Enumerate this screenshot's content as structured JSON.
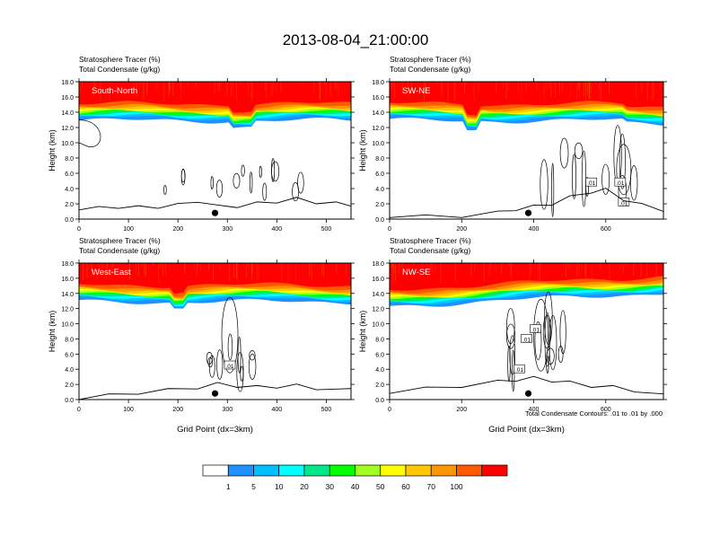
{
  "figure_title": "2013-08-04_21:00:00",
  "contour_note": "Total Condensate Contours: .01 to .01 by .000",
  "colorbar": {
    "levels": [
      "1",
      "5",
      "10",
      "20",
      "30",
      "40",
      "50",
      "60",
      "70",
      "100"
    ],
    "colors": [
      "#ffffff",
      "#1e90ff",
      "#00bfff",
      "#00ffff",
      "#00e88a",
      "#00ff00",
      "#a0ff20",
      "#ffff00",
      "#ffc800",
      "#ff9600",
      "#ff5a00",
      "#ff0000"
    ]
  },
  "chart_data": [
    {
      "type": "contour-cross-section",
      "label": "South-North",
      "subtitle1": "Stratosphere Tracer   (%)",
      "subtitle2": "Total Condensate   (g/kg)",
      "ylabel": "Height (km)",
      "xlabel": "",
      "xlim": [
        0,
        550
      ],
      "ylim": [
        0,
        18
      ],
      "xticks": [
        0,
        100,
        200,
        300,
        400,
        500
      ],
      "yticks": [
        "0.0",
        "2.0",
        "4.0",
        "6.0",
        "8.0",
        "10.0",
        "12.0",
        "14.0",
        "16.0",
        "18.0"
      ],
      "marker_x": 275,
      "terrain": [
        [
          0,
          1.4
        ],
        [
          40,
          1.4
        ],
        [
          80,
          1.6
        ],
        [
          120,
          1.5
        ],
        [
          160,
          1.6
        ],
        [
          200,
          1.8
        ],
        [
          240,
          2.4
        ],
        [
          280,
          1.6
        ],
        [
          320,
          1.7
        ],
        [
          360,
          2.0
        ],
        [
          400,
          2.3
        ],
        [
          440,
          2.6
        ],
        [
          480,
          2.2
        ],
        [
          520,
          2.0
        ],
        [
          550,
          1.9
        ]
      ],
      "contour_labels": []
    },
    {
      "type": "contour-cross-section",
      "label": "SW-NE",
      "subtitle1": "Stratosphere Tracer   (%)",
      "subtitle2": "Total Condensate   (g/kg)",
      "ylabel": "Height (km)",
      "xlabel": "",
      "xlim": [
        0,
        760
      ],
      "ylim": [
        0,
        18
      ],
      "xticks": [
        0,
        200,
        400,
        600
      ],
      "yticks": [
        "0.0",
        "2.0",
        "4.0",
        "6.0",
        "8.0",
        "10.0",
        "12.0",
        "14.0",
        "16.0",
        "18.0"
      ],
      "marker_x": 385,
      "terrain": [
        [
          0,
          0.4
        ],
        [
          100,
          0.3
        ],
        [
          200,
          0.4
        ],
        [
          300,
          0.8
        ],
        [
          350,
          1.3
        ],
        [
          400,
          1.6
        ],
        [
          450,
          2.0
        ],
        [
          500,
          2.8
        ],
        [
          560,
          3.6
        ],
        [
          600,
          3.8
        ],
        [
          650,
          2.6
        ],
        [
          700,
          1.8
        ],
        [
          760,
          1.2
        ]
      ],
      "contour_labels": [
        ".01",
        ".01",
        ".01"
      ]
    },
    {
      "type": "contour-cross-section",
      "label": "West-East",
      "subtitle1": "Stratosphere Tracer   (%)",
      "subtitle2": "Total Condensate   (g/kg)",
      "ylabel": "Height (km)",
      "xlabel": "Grid Point (dx=3km)",
      "xlim": [
        0,
        550
      ],
      "ylim": [
        0,
        18
      ],
      "xticks": [
        0,
        100,
        200,
        300,
        400,
        500
      ],
      "yticks": [
        "0.0",
        "2.0",
        "4.0",
        "6.0",
        "8.0",
        "10.0",
        "12.0",
        "14.0",
        "16.0",
        "18.0"
      ],
      "marker_x": 275,
      "terrain": [
        [
          0,
          0.2
        ],
        [
          60,
          0.5
        ],
        [
          120,
          0.9
        ],
        [
          180,
          1.2
        ],
        [
          240,
          1.6
        ],
        [
          280,
          2.0
        ],
        [
          320,
          1.8
        ],
        [
          360,
          1.6
        ],
        [
          400,
          1.7
        ],
        [
          440,
          1.8
        ],
        [
          480,
          1.5
        ],
        [
          550,
          1.2
        ]
      ],
      "contour_labels": [
        ".01"
      ]
    },
    {
      "type": "contour-cross-section",
      "label": "NW-SE",
      "subtitle1": "Stratosphere Tracer   (%)",
      "subtitle2": "Total Condensate   (g/kg)",
      "ylabel": "Height (km)",
      "xlabel": "Grid Point (dx=3km)",
      "xlim": [
        0,
        760
      ],
      "ylim": [
        0,
        18
      ],
      "xticks": [
        0,
        200,
        400,
        600
      ],
      "yticks": [
        "0.0",
        "2.0",
        "4.0",
        "6.0",
        "8.0",
        "10.0",
        "12.0",
        "14.0",
        "16.0",
        "18.0"
      ],
      "marker_x": 385,
      "terrain": [
        [
          0,
          1.0
        ],
        [
          100,
          1.4
        ],
        [
          200,
          1.8
        ],
        [
          300,
          2.3
        ],
        [
          350,
          2.6
        ],
        [
          400,
          2.8
        ],
        [
          450,
          2.5
        ],
        [
          500,
          2.2
        ],
        [
          560,
          1.8
        ],
        [
          620,
          1.6
        ],
        [
          680,
          1.2
        ],
        [
          760,
          0.5
        ]
      ],
      "contour_labels": [
        ".01",
        ".01",
        ".01"
      ]
    }
  ]
}
